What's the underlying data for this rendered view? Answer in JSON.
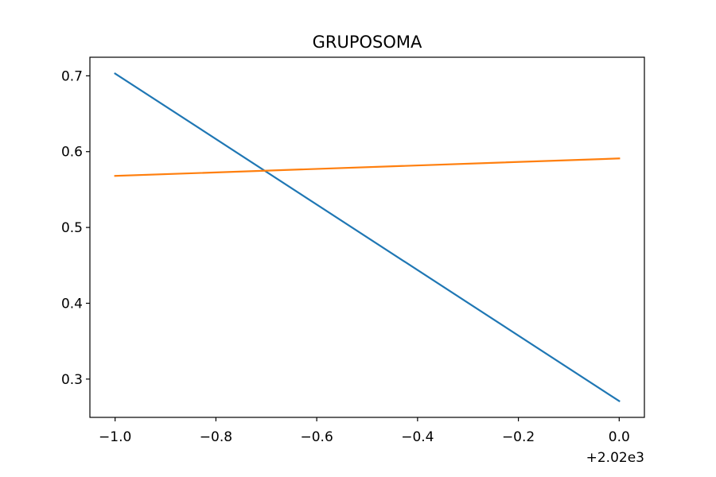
{
  "chart_data": {
    "type": "line",
    "title": "GRUPOSOMA",
    "xlabel": "",
    "ylabel": "",
    "x": [
      2019,
      2020
    ],
    "x_offset_label": "+2.02e3",
    "series": [
      {
        "values": [
          0.703,
          0.271
        ],
        "color": "#1f77b4"
      },
      {
        "values": [
          0.568,
          0.591
        ],
        "color": "#ff7f0e"
      }
    ],
    "xlim": [
      2018.95,
      2020.05
    ],
    "ylim": [
      0.2495,
      0.7245
    ],
    "xticks": [
      {
        "value": 2019.0,
        "label": "−1.0"
      },
      {
        "value": 2019.2,
        "label": "−0.8"
      },
      {
        "value": 2019.4,
        "label": "−0.6"
      },
      {
        "value": 2019.6,
        "label": "−0.4"
      },
      {
        "value": 2019.8,
        "label": "−0.2"
      },
      {
        "value": 2020.0,
        "label": "0.0"
      }
    ],
    "yticks": [
      {
        "value": 0.3,
        "label": "0.3"
      },
      {
        "value": 0.4,
        "label": "0.4"
      },
      {
        "value": 0.5,
        "label": "0.5"
      },
      {
        "value": 0.6,
        "label": "0.6"
      },
      {
        "value": 0.7,
        "label": "0.7"
      }
    ],
    "grid": false,
    "legend": "none"
  }
}
